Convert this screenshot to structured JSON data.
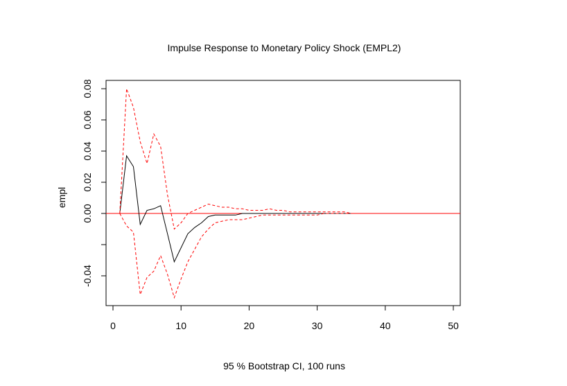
{
  "chart_data": {
    "type": "line",
    "title": "Impulse Response to Monetary Policy Shock (EMPL2)",
    "xlabel": "95 % Bootstrap CI,  100 runs",
    "ylabel": "empl",
    "xlim": [
      0,
      50
    ],
    "ylim": [
      -0.059,
      0.086
    ],
    "xticks": [
      "0",
      "10",
      "20",
      "30",
      "40",
      "50"
    ],
    "yticks": [
      "-0.04",
      "0.00",
      "0.02",
      "0.04",
      "0.06",
      "0.08"
    ],
    "xtick_values": [
      0,
      10,
      20,
      30,
      40,
      50
    ],
    "ytick_values": [
      -0.04,
      0,
      0.02,
      0.04,
      0.06,
      0.08
    ],
    "ytick_extra": [
      -0.02
    ],
    "zero_line": 0,
    "grid": false,
    "x": [
      1,
      2,
      3,
      4,
      5,
      6,
      7,
      8,
      9,
      10,
      11,
      12,
      13,
      14,
      15,
      16,
      17,
      18,
      19,
      20,
      21,
      22,
      23,
      24,
      25,
      26,
      27,
      28,
      29,
      30,
      31,
      32,
      33,
      34,
      35
    ],
    "series": [
      {
        "role": "irf",
        "color": "#000000",
        "dash": "solid",
        "values": [
          0.0,
          0.037,
          0.03,
          -0.007,
          0.002,
          0.003,
          0.005,
          -0.013,
          -0.031,
          -0.022,
          -0.013,
          -0.009,
          -0.006,
          -0.002,
          -0.001,
          -0.001,
          -0.001,
          -0.001,
          0.0,
          0.0,
          0.0,
          0.0,
          0.0,
          0.0,
          0.0,
          0.0,
          0.0,
          0.0,
          0.0,
          0.0,
          0.0,
          0.0,
          0.0,
          0.0,
          0.0
        ]
      },
      {
        "role": "upper-ci",
        "color": "#ff0000",
        "dash": "dashed",
        "values": [
          0.0,
          0.08,
          0.068,
          0.046,
          0.032,
          0.051,
          0.043,
          0.012,
          -0.01,
          -0.006,
          0.0,
          0.002,
          0.004,
          0.006,
          0.005,
          0.004,
          0.004,
          0.003,
          0.003,
          0.002,
          0.002,
          0.002,
          0.003,
          0.002,
          0.002,
          0.001,
          0.001,
          0.001,
          0.001,
          0.001,
          0.001,
          0.001,
          0.001,
          0.001,
          0.0
        ]
      },
      {
        "role": "lower-ci",
        "color": "#ff0000",
        "dash": "dashed",
        "values": [
          0.0,
          -0.008,
          -0.012,
          -0.052,
          -0.041,
          -0.037,
          -0.027,
          -0.039,
          -0.054,
          -0.042,
          -0.031,
          -0.023,
          -0.015,
          -0.01,
          -0.006,
          -0.005,
          -0.004,
          -0.004,
          -0.004,
          -0.003,
          -0.002,
          -0.001,
          -0.001,
          -0.001,
          -0.001,
          -0.001,
          -0.001,
          -0.001,
          -0.001,
          -0.001,
          0.0,
          0.0,
          0.0,
          0.0,
          0.0
        ]
      }
    ],
    "colors": {
      "zero_line": "#ff0000"
    }
  }
}
